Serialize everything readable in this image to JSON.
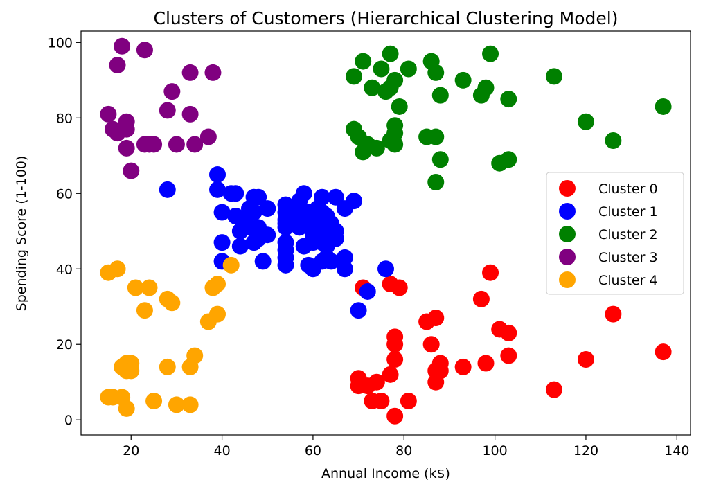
{
  "chart_data": {
    "type": "scatter",
    "title": "Clusters of Customers (Hierarchical Clustering Model)",
    "xlabel": "Annual Income (k$)",
    "ylabel": "Spending Score (1-100)",
    "xlim": [
      9,
      143
    ],
    "ylim": [
      -4,
      103
    ],
    "xticks": [
      20,
      40,
      60,
      80,
      100,
      120,
      140
    ],
    "yticks": [
      0,
      20,
      40,
      60,
      80,
      100
    ],
    "grid": false,
    "legend_position": "center-right",
    "series": [
      {
        "name": "Cluster 0",
        "color": "#ff0000",
        "points": [
          [
            70,
            11
          ],
          [
            70,
            9
          ],
          [
            71,
            35
          ],
          [
            72,
            9
          ],
          [
            73,
            5
          ],
          [
            74,
            10
          ],
          [
            75,
            5
          ],
          [
            77,
            12
          ],
          [
            77,
            36
          ],
          [
            78,
            22
          ],
          [
            78,
            20
          ],
          [
            78,
            16
          ],
          [
            78,
            1
          ],
          [
            79,
            35
          ],
          [
            81,
            5
          ],
          [
            85,
            26
          ],
          [
            86,
            20
          ],
          [
            87,
            27
          ],
          [
            87,
            13
          ],
          [
            87,
            10
          ],
          [
            88,
            15
          ],
          [
            88,
            13
          ],
          [
            93,
            14
          ],
          [
            97,
            32
          ],
          [
            98,
            15
          ],
          [
            99,
            39
          ],
          [
            101,
            24
          ],
          [
            103,
            23
          ],
          [
            103,
            17
          ],
          [
            113,
            8
          ],
          [
            120,
            16
          ],
          [
            126,
            28
          ],
          [
            137,
            18
          ]
        ]
      },
      {
        "name": "Cluster 1",
        "color": "#0000ff",
        "points": [
          [
            28,
            61
          ],
          [
            39,
            65
          ],
          [
            39,
            61
          ],
          [
            40,
            55
          ],
          [
            40,
            47
          ],
          [
            40,
            42
          ],
          [
            42,
            60
          ],
          [
            43,
            54
          ],
          [
            43,
            60
          ],
          [
            44,
            50
          ],
          [
            44,
            46
          ],
          [
            45,
            52
          ],
          [
            46,
            56
          ],
          [
            46,
            51
          ],
          [
            47,
            59
          ],
          [
            47,
            55
          ],
          [
            47,
            47
          ],
          [
            48,
            59
          ],
          [
            48,
            51
          ],
          [
            48,
            48
          ],
          [
            49,
            42
          ],
          [
            50,
            56
          ],
          [
            50,
            49
          ],
          [
            54,
            57
          ],
          [
            54,
            55
          ],
          [
            54,
            53
          ],
          [
            54,
            52
          ],
          [
            54,
            51
          ],
          [
            54,
            47
          ],
          [
            54,
            45
          ],
          [
            54,
            43
          ],
          [
            54,
            41
          ],
          [
            57,
            58
          ],
          [
            57,
            55
          ],
          [
            57,
            53
          ],
          [
            57,
            51
          ],
          [
            58,
            60
          ],
          [
            58,
            46
          ],
          [
            59,
            55
          ],
          [
            59,
            41
          ],
          [
            60,
            52
          ],
          [
            60,
            49
          ],
          [
            60,
            47
          ],
          [
            60,
            40
          ],
          [
            61,
            56
          ],
          [
            61,
            53
          ],
          [
            62,
            59
          ],
          [
            62,
            55
          ],
          [
            62,
            52
          ],
          [
            62,
            49
          ],
          [
            62,
            47
          ],
          [
            62,
            42
          ],
          [
            63,
            54
          ],
          [
            63,
            50
          ],
          [
            63,
            46
          ],
          [
            63,
            43
          ],
          [
            64,
            52
          ],
          [
            64,
            48
          ],
          [
            64,
            42
          ],
          [
            65,
            59
          ],
          [
            65,
            50
          ],
          [
            65,
            48
          ],
          [
            67,
            56
          ],
          [
            67,
            43
          ],
          [
            67,
            40
          ],
          [
            69,
            58
          ],
          [
            70,
            29
          ],
          [
            72,
            34
          ],
          [
            76,
            40
          ]
        ]
      },
      {
        "name": "Cluster 2",
        "color": "#008000",
        "points": [
          [
            69,
            91
          ],
          [
            69,
            77
          ],
          [
            70,
            75
          ],
          [
            71,
            95
          ],
          [
            71,
            71
          ],
          [
            72,
            73
          ],
          [
            73,
            88
          ],
          [
            74,
            72
          ],
          [
            75,
            93
          ],
          [
            76,
            87
          ],
          [
            77,
            97
          ],
          [
            77,
            74
          ],
          [
            77,
            88
          ],
          [
            78,
            90
          ],
          [
            78,
            78
          ],
          [
            78,
            76
          ],
          [
            78,
            73
          ],
          [
            79,
            83
          ],
          [
            81,
            93
          ],
          [
            85,
            75
          ],
          [
            86,
            95
          ],
          [
            87,
            92
          ],
          [
            87,
            75
          ],
          [
            87,
            63
          ],
          [
            88,
            86
          ],
          [
            88,
            69
          ],
          [
            93,
            90
          ],
          [
            97,
            86
          ],
          [
            98,
            88
          ],
          [
            99,
            97
          ],
          [
            101,
            68
          ],
          [
            103,
            85
          ],
          [
            103,
            69
          ],
          [
            113,
            91
          ],
          [
            120,
            79
          ],
          [
            126,
            74
          ],
          [
            137,
            83
          ]
        ]
      },
      {
        "name": "Cluster 3",
        "color": "#800080",
        "points": [
          [
            15,
            81
          ],
          [
            16,
            77
          ],
          [
            17,
            76
          ],
          [
            17,
            94
          ],
          [
            18,
            99
          ],
          [
            19,
            72
          ],
          [
            19,
            77
          ],
          [
            19,
            79
          ],
          [
            20,
            66
          ],
          [
            23,
            98
          ],
          [
            23,
            73
          ],
          [
            24,
            73
          ],
          [
            25,
            73
          ],
          [
            28,
            82
          ],
          [
            29,
            87
          ],
          [
            30,
            73
          ],
          [
            33,
            92
          ],
          [
            33,
            81
          ],
          [
            34,
            73
          ],
          [
            37,
            75
          ],
          [
            38,
            92
          ]
        ]
      },
      {
        "name": "Cluster 4",
        "color": "#ffa500",
        "points": [
          [
            15,
            39
          ],
          [
            15,
            6
          ],
          [
            16,
            6
          ],
          [
            17,
            40
          ],
          [
            18,
            6
          ],
          [
            18,
            14
          ],
          [
            19,
            3
          ],
          [
            19,
            14
          ],
          [
            19,
            15
          ],
          [
            19,
            13
          ],
          [
            20,
            15
          ],
          [
            20,
            13
          ],
          [
            21,
            35
          ],
          [
            23,
            29
          ],
          [
            24,
            35
          ],
          [
            25,
            5
          ],
          [
            28,
            32
          ],
          [
            28,
            14
          ],
          [
            29,
            31
          ],
          [
            30,
            4
          ],
          [
            33,
            4
          ],
          [
            33,
            14
          ],
          [
            34,
            17
          ],
          [
            37,
            26
          ],
          [
            38,
            35
          ],
          [
            39,
            36
          ],
          [
            39,
            28
          ],
          [
            42,
            41
          ]
        ]
      }
    ]
  }
}
